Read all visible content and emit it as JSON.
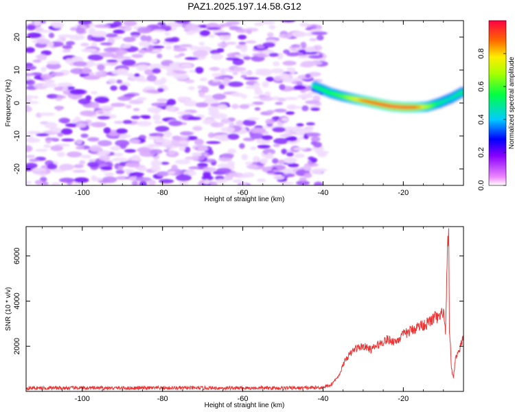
{
  "title": "PAZ1.2025.197.14.58.G12",
  "chart_data": [
    {
      "type": "heatmap",
      "xlabel": "Height of straight line (km)",
      "ylabel": "Frequency (Hz)",
      "xlim": [
        -114,
        -5
      ],
      "ylim": [
        -25,
        25
      ],
      "xticks": [
        -100,
        -80,
        -60,
        -40,
        -20
      ],
      "yticks": [
        -20,
        -10,
        0,
        10,
        20
      ],
      "noise_region_x": [
        -114,
        -40
      ],
      "signal_ridge": {
        "x": [
          -42,
          -38,
          -35,
          -32,
          -29,
          -26,
          -23,
          -20,
          -17,
          -14,
          -11,
          -8,
          -5
        ],
        "y": [
          5,
          3,
          2,
          1.2,
          0.5,
          -0.3,
          -1,
          -1.3,
          -1.3,
          -1.1,
          0,
          1.5,
          3.5
        ],
        "amplitude": [
          0.5,
          0.55,
          0.6,
          0.75,
          0.9,
          0.95,
          1.0,
          1.0,
          0.95,
          0.7,
          0.5,
          0.45,
          0.5
        ]
      },
      "colorbar": {
        "label": "Normalized spectral amplitude",
        "ticks": [
          "0.0",
          "0.2",
          "0.4",
          "0.6",
          "0.8"
        ],
        "range": [
          0,
          1
        ]
      }
    },
    {
      "type": "line",
      "xlabel": "Height of straight line (km)",
      "ylabel": "SNR (10 * v/v)",
      "xlim": [
        -114,
        -5
      ],
      "ylim": [
        0,
        7300
      ],
      "xticks": [
        -100,
        -80,
        -60,
        -40,
        -20
      ],
      "yticks": [
        2000,
        4000,
        6000
      ],
      "color": "#ee3333",
      "series": [
        {
          "x": [
            -114,
            -100,
            -80,
            -60,
            -45,
            -40,
            -38,
            -36,
            -35,
            -34,
            -32,
            -30,
            -28,
            -26,
            -24,
            -22,
            -20,
            -18,
            -16,
            -14,
            -12,
            -11,
            -10,
            -9.5,
            -9,
            -8.7,
            -8.5,
            -8.2,
            -8,
            -7.5,
            -7,
            -6,
            -5
          ],
          "y": [
            150,
            150,
            150,
            150,
            150,
            180,
            300,
            700,
            1200,
            1500,
            1900,
            2000,
            1850,
            2100,
            2300,
            2200,
            2500,
            2700,
            2900,
            3000,
            3300,
            3200,
            3600,
            2500,
            6000,
            7300,
            2500,
            1800,
            1000,
            600,
            1500,
            1800,
            2500
          ]
        }
      ]
    }
  ]
}
